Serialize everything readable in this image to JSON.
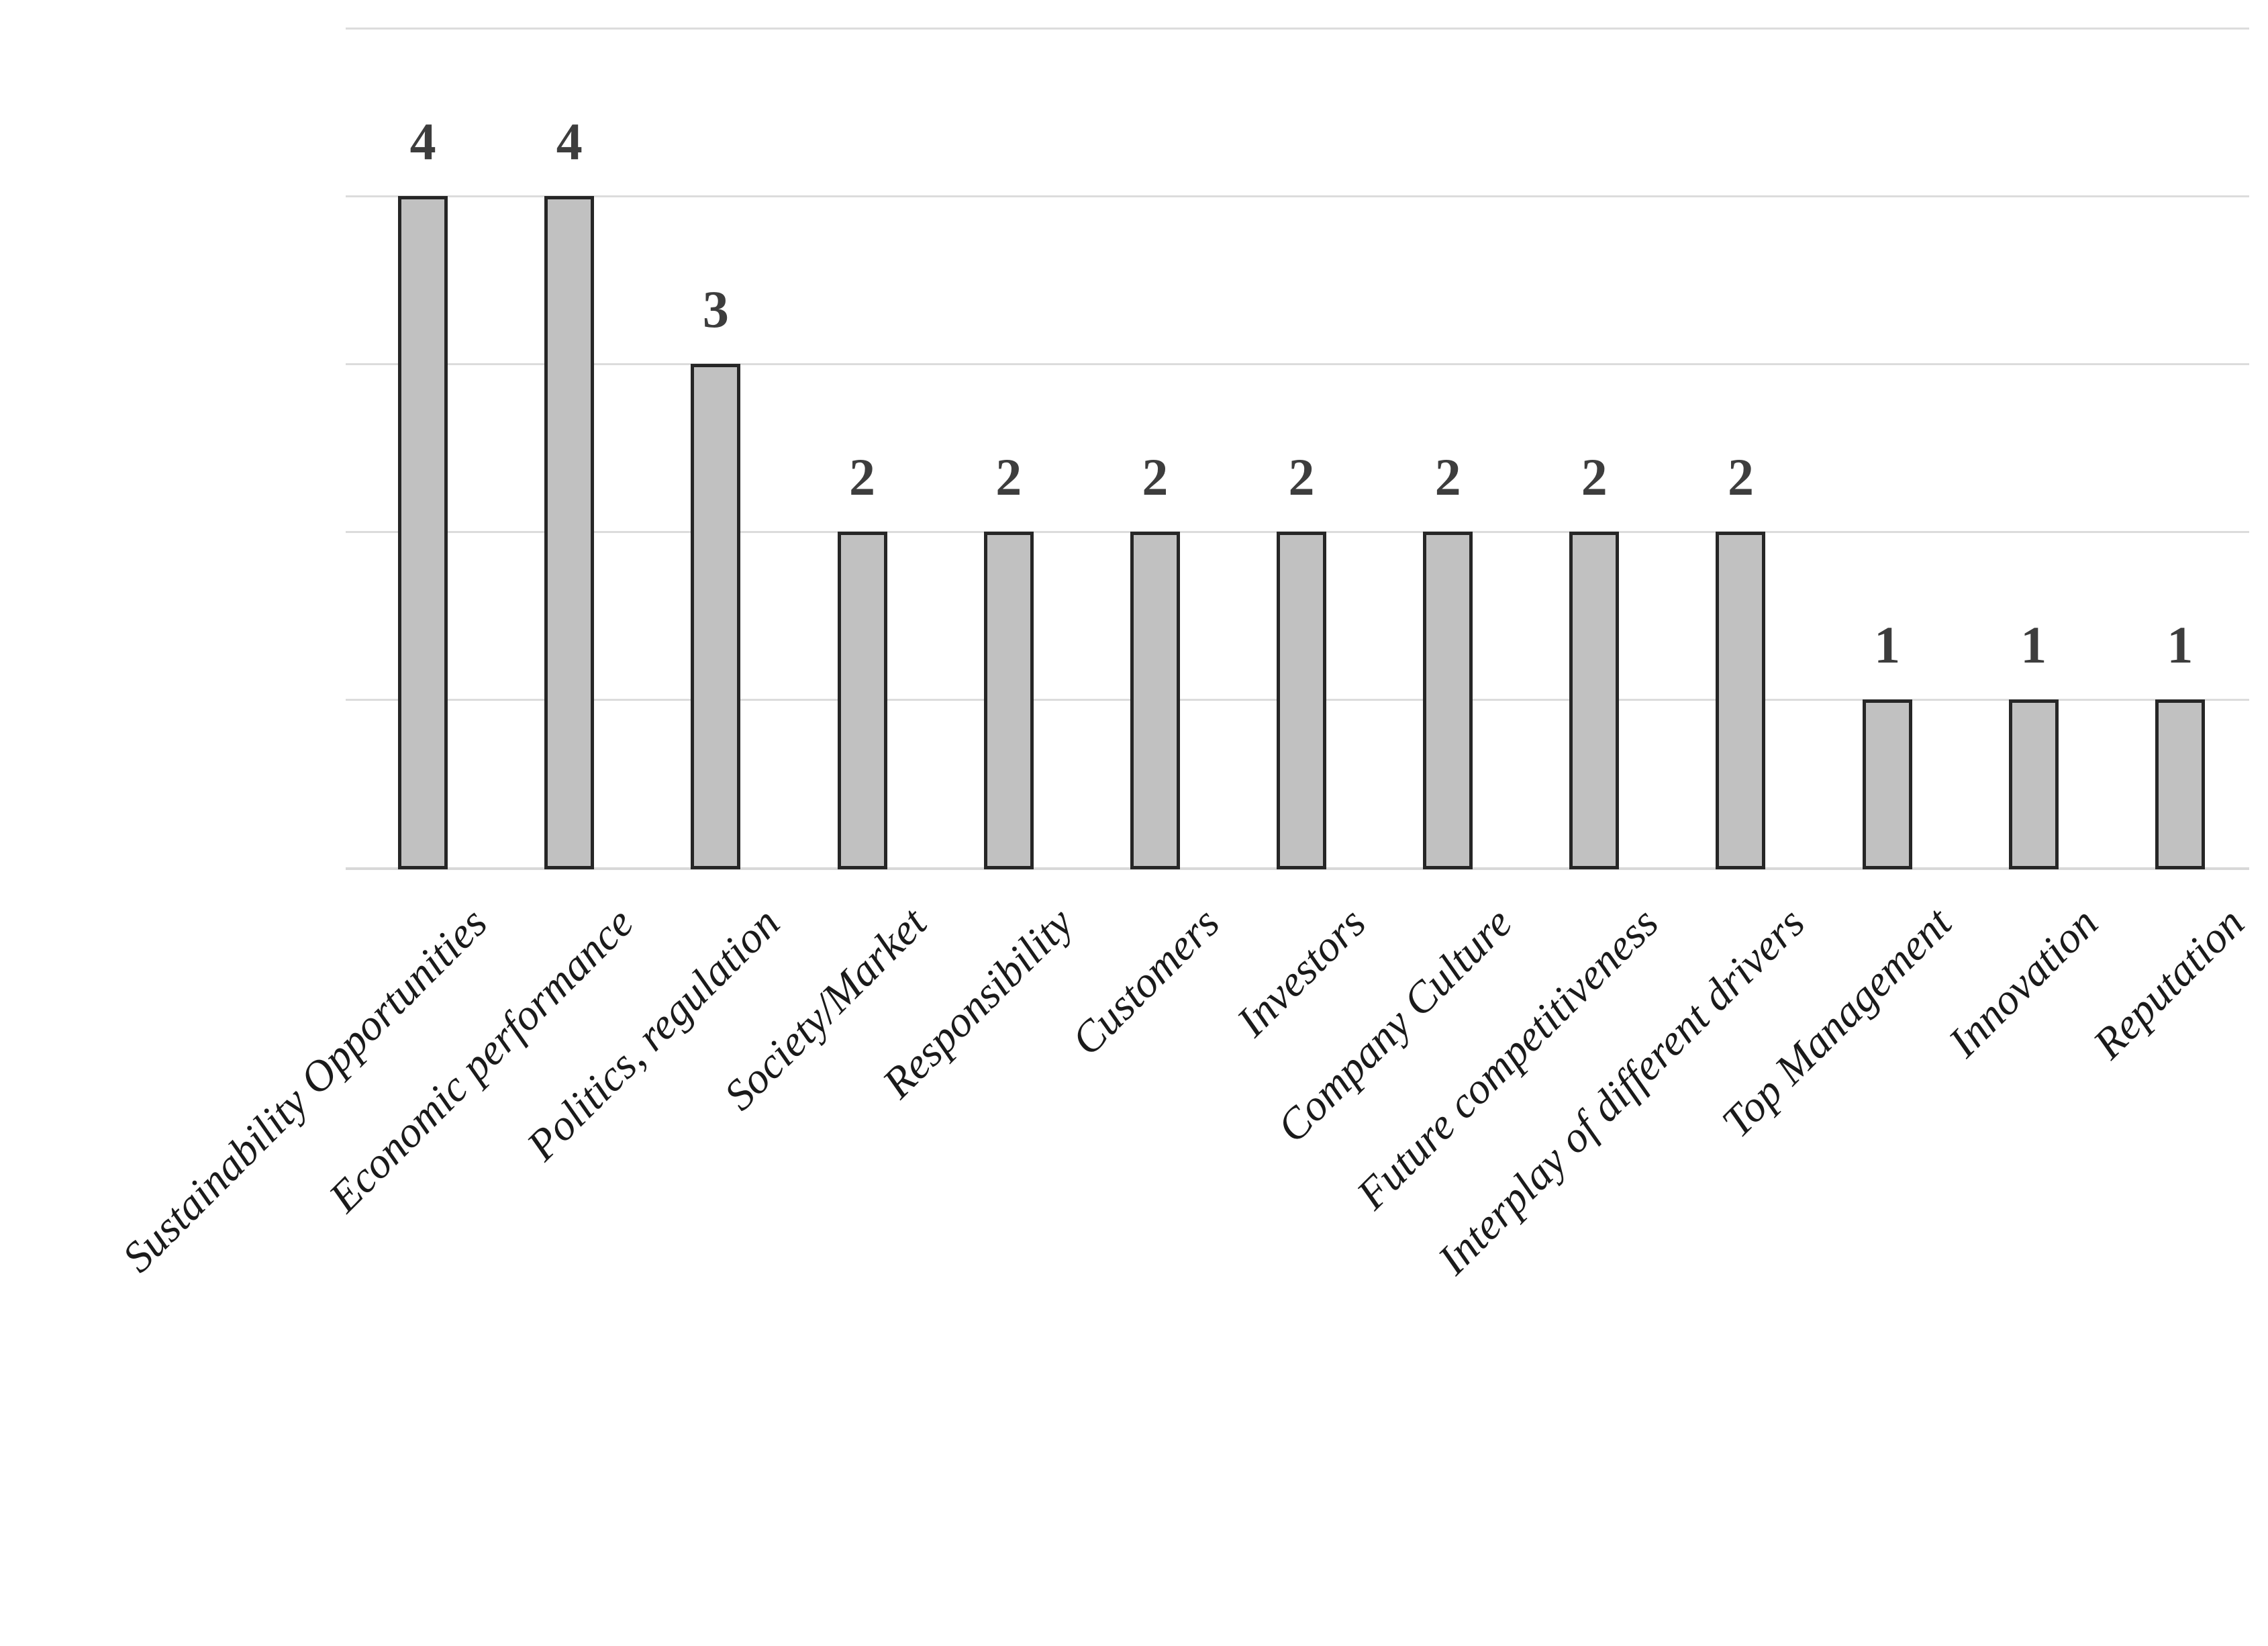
{
  "chart_data": {
    "type": "bar",
    "title": "",
    "xlabel": "",
    "ylabel": "",
    "categories": [
      "Sustainability Opportunities",
      "Economic performance",
      "Politics, regulation",
      "Society/Market",
      "Responsibility",
      "Customers",
      "Investors",
      "Company Culture",
      "Future competitiveness",
      "Interplay of different drivers",
      "Top Management",
      "Innovation",
      "Reputation"
    ],
    "values": [
      4,
      4,
      3,
      2,
      2,
      2,
      2,
      2,
      2,
      2,
      1,
      1,
      1
    ],
    "data_labels": [
      "4",
      "4",
      "3",
      "2",
      "2",
      "2",
      "2",
      "2",
      "2",
      "2",
      "1",
      "1",
      "1"
    ],
    "ylim": [
      0,
      5
    ],
    "gridline_step": 1,
    "grid": "horizontal",
    "legend": "none",
    "y_axis_tick_labels_visible": false,
    "category_label_rotation_deg": -45
  },
  "colors": {
    "background": "#ffffff",
    "gridline": "#dcdcdc",
    "axis_line": "#d8d8d8",
    "bar_fill": "#c1c1c1",
    "bar_border": "#262626",
    "value_label": "#3d3d3d",
    "category_label": "#1a1a1a"
  }
}
